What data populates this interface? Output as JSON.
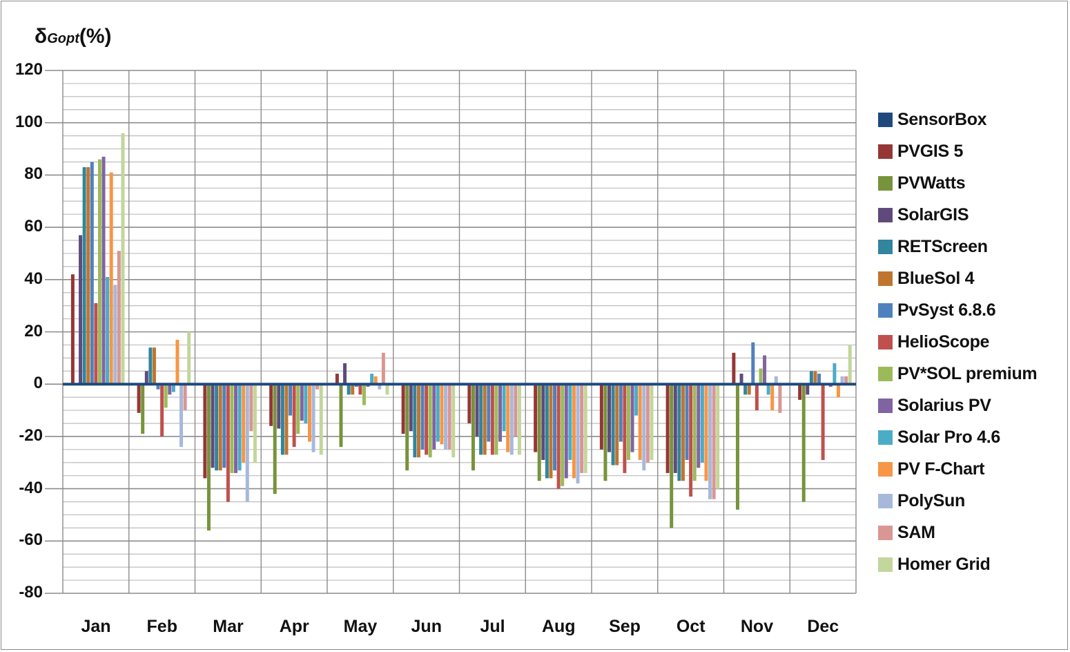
{
  "chart_data": {
    "type": "bar",
    "title": "",
    "ylabel_main": "δ",
    "ylabel_sub": "Gopt",
    "ylabel_unit": "(%)",
    "xlabel": "",
    "ylim": [
      -80,
      120
    ],
    "yticks": [
      120,
      100,
      80,
      60,
      40,
      20,
      0,
      -20,
      -40,
      -60,
      -80
    ],
    "minor_grid_step": 5,
    "grid": true,
    "legend_position": "right",
    "categories": [
      "Jan",
      "Feb",
      "Mar",
      "Apr",
      "May",
      "Jun",
      "Jul",
      "Aug",
      "Sep",
      "Oct",
      "Nov",
      "Dec"
    ],
    "series": [
      {
        "name": "SensorBox",
        "color": "#1f497d",
        "values": [
          0,
          0,
          0,
          0,
          0,
          0,
          0,
          0,
          0,
          0,
          0,
          0
        ]
      },
      {
        "name": "PVGIS 5",
        "color": "#953735",
        "values": [
          42,
          -11,
          -36,
          -16,
          4,
          -19,
          -15,
          -26,
          -25,
          -34,
          12,
          -6
        ]
      },
      {
        "name": "PVWatts",
        "color": "#77933c",
        "values": [
          0,
          -19,
          -56,
          -42,
          -24,
          -33,
          -33,
          -37,
          -37,
          -55,
          -48,
          -45
        ]
      },
      {
        "name": "SolarGIS",
        "color": "#604a7b",
        "values": [
          57,
          5,
          -32,
          -17,
          8,
          -18,
          -20,
          -29,
          -26,
          -34,
          4,
          -4
        ]
      },
      {
        "name": "RETScreen",
        "color": "#31859c",
        "values": [
          83,
          14,
          -33,
          -27,
          -4,
          -28,
          -27,
          -36,
          -31,
          -37,
          -4,
          5
        ]
      },
      {
        "name": "BlueSol 4",
        "color": "#c0752f",
        "values": [
          83,
          14,
          -33,
          -27,
          -4,
          -28,
          -27,
          -36,
          -31,
          -37,
          -4,
          5
        ]
      },
      {
        "name": "PvSyst 6.8.6",
        "color": "#4f81bd",
        "values": [
          85,
          -2,
          -32,
          -12,
          -1,
          -25,
          -22,
          -33,
          -22,
          -29,
          16,
          4
        ]
      },
      {
        "name": "HelioScope",
        "color": "#c0504d",
        "values": [
          31,
          -20,
          -45,
          -24,
          -4,
          -27,
          -27,
          -40,
          -34,
          -43,
          -10,
          -29
        ]
      },
      {
        "name": "PV*SOL premium",
        "color": "#9bbb59",
        "values": [
          86,
          -9,
          -34,
          -19,
          -8,
          -28,
          -27,
          -39,
          -29,
          -37,
          6,
          0
        ]
      },
      {
        "name": "Solarius PV",
        "color": "#8064a2",
        "values": [
          87,
          -4,
          -34,
          -14,
          -1,
          -25,
          -22,
          -36,
          -26,
          -32,
          11,
          -1
        ]
      },
      {
        "name": "Solar Pro 4.6",
        "color": "#4bacc6",
        "values": [
          41,
          -3,
          -33,
          -15,
          4,
          -22,
          -18,
          -29,
          -12,
          -30,
          -4,
          8
        ]
      },
      {
        "name": "PV F-Chart",
        "color": "#f79646",
        "values": [
          81,
          17,
          -30,
          -22,
          3,
          -23,
          -26,
          -36,
          -29,
          -37,
          -10,
          -5
        ]
      },
      {
        "name": "PolySun",
        "color": "#a6b9db",
        "values": [
          38,
          -24,
          -45,
          -26,
          -2,
          -25,
          -27,
          -38,
          -33,
          -44,
          3,
          3
        ]
      },
      {
        "name": "SAM",
        "color": "#d99694",
        "values": [
          51,
          -10,
          -18,
          -2,
          12,
          -25,
          -20,
          -34,
          -30,
          -44,
          -11,
          3
        ]
      },
      {
        "name": "Homer Grid",
        "color": "#c3d69b",
        "values": [
          96,
          20,
          -30,
          -27,
          -4,
          -28,
          -27,
          -34,
          -29,
          -40,
          0,
          15
        ]
      }
    ]
  }
}
